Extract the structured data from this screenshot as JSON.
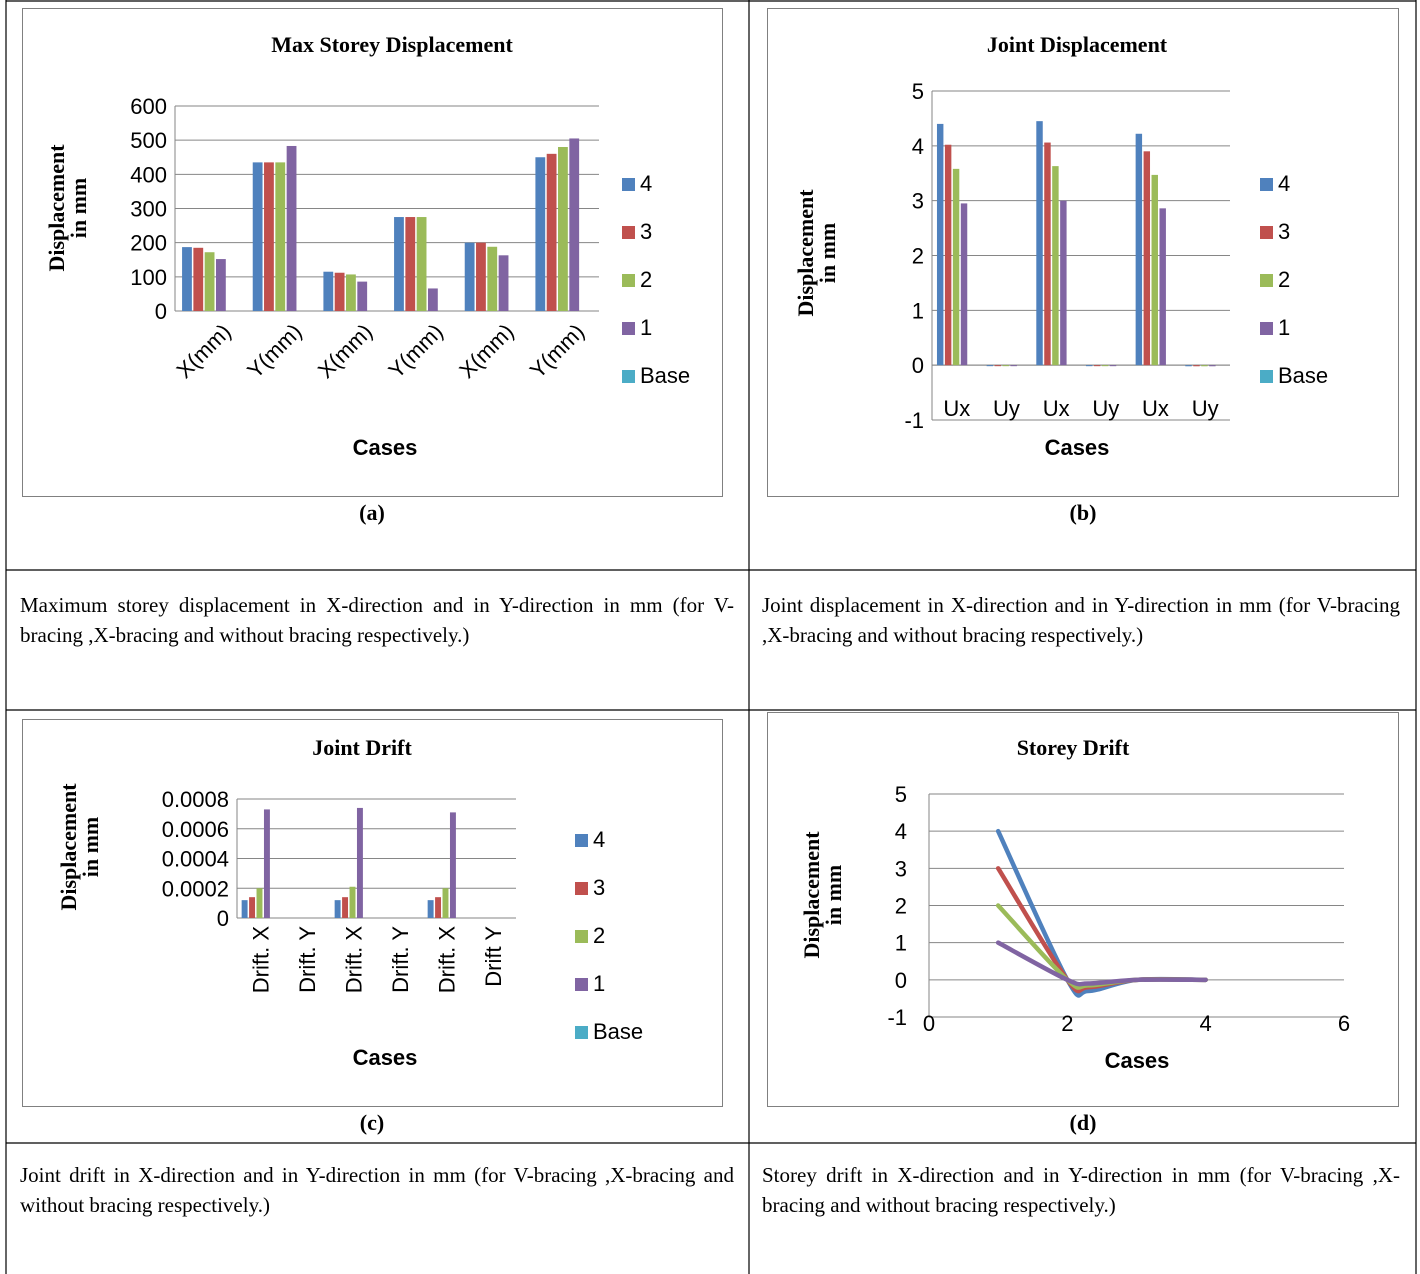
{
  "palette": {
    "4": "#4F81BD",
    "3": "#C0504D",
    "2": "#9BBB59",
    "1": "#8064A2",
    "Base": "#4BACC6"
  },
  "legend_entries": [
    "4",
    "3",
    "2",
    "1",
    "Base"
  ],
  "panels": {
    "a": {
      "label": "(a)",
      "description": "Maximum storey displacement in X-direction and in Y-direction in mm (for V-bracing ,X-bracing and without bracing respectively.)"
    },
    "b": {
      "label": "(b)",
      "description": "Joint displacement in X-direction and in Y-direction in mm (for V-bracing ,X-bracing and without bracing respectively.)"
    },
    "c": {
      "label": "(c)",
      "description": "Joint drift in X-direction and in Y-direction in mm (for V-bracing ,X-bracing and without bracing respectively.)"
    },
    "d": {
      "label": "(d)",
      "description": "Storey drift in X-direction and in Y-direction in mm (for V-bracing ,X-bracing and without bracing respectively.)"
    }
  },
  "chart_data": [
    {
      "id": "a",
      "type": "bar",
      "title": "Max Storey Displacement",
      "xlabel": "Cases",
      "ylabel": "Displacement in mm",
      "categories": [
        "X(mm)",
        "Y(mm)",
        "X(mm)",
        "Y(mm)",
        "X(mm)",
        "Y(mm)"
      ],
      "ylim": [
        0,
        600
      ],
      "yticks": [
        "0",
        "100",
        "200",
        "300",
        "400",
        "500",
        "600"
      ],
      "grid": true,
      "legend": "right",
      "series": [
        {
          "name": "4",
          "values": [
            187,
            435,
            115,
            275,
            200,
            450
          ]
        },
        {
          "name": "3",
          "values": [
            185,
            435,
            112,
            275,
            200,
            460
          ]
        },
        {
          "name": "2",
          "values": [
            172,
            435,
            107,
            275,
            188,
            480
          ]
        },
        {
          "name": "1",
          "values": [
            152,
            483,
            86,
            66,
            163,
            505
          ]
        },
        {
          "name": "Base",
          "values": [
            0,
            0,
            0,
            0,
            0,
            0
          ]
        }
      ]
    },
    {
      "id": "b",
      "type": "bar",
      "title": "Joint Displacement",
      "xlabel": "Cases",
      "ylabel": "Displacement in mm",
      "categories": [
        "Ux",
        "Uy",
        "Ux",
        "Uy",
        "Ux",
        "Uy"
      ],
      "ylim": [
        -1,
        5
      ],
      "yticks": [
        "-1",
        "0",
        "1",
        "2",
        "3",
        "4",
        "5"
      ],
      "grid": true,
      "legend": "right",
      "series": [
        {
          "name": "4",
          "values": [
            4.4,
            -0.01,
            4.45,
            -0.01,
            4.22,
            -0.02
          ]
        },
        {
          "name": "3",
          "values": [
            4.02,
            -0.01,
            4.06,
            -0.01,
            3.9,
            -0.02
          ]
        },
        {
          "name": "2",
          "values": [
            3.58,
            -0.01,
            3.63,
            -0.01,
            3.47,
            -0.02
          ]
        },
        {
          "name": "1",
          "values": [
            2.95,
            -0.01,
            3.0,
            -0.01,
            2.86,
            -0.02
          ]
        },
        {
          "name": "Base",
          "values": [
            0,
            0,
            0,
            0,
            0,
            0
          ]
        }
      ]
    },
    {
      "id": "c",
      "type": "bar",
      "title": "Joint Drift",
      "xlabel": "Cases",
      "ylabel": "Displacement in mm",
      "categories": [
        "Drift. X",
        "Drift. Y",
        "Drift. X",
        "Drift. Y",
        "Drift. X",
        "Drift Y"
      ],
      "ylim": [
        0,
        0.0008
      ],
      "yticks": [
        "0",
        "0.0002",
        "0.0004",
        "0.0006",
        "0.0008"
      ],
      "grid": true,
      "legend": "right",
      "series": [
        {
          "name": "4",
          "values": [
            0.00012,
            0,
            0.00012,
            0,
            0.00012,
            0
          ]
        },
        {
          "name": "3",
          "values": [
            0.00014,
            0,
            0.00014,
            0,
            0.00014,
            0
          ]
        },
        {
          "name": "2",
          "values": [
            0.0002,
            0,
            0.00021,
            0,
            0.0002,
            0
          ]
        },
        {
          "name": "1",
          "values": [
            0.00073,
            0,
            0.00074,
            0,
            0.00071,
            0
          ]
        },
        {
          "name": "Base",
          "values": [
            0,
            0,
            0,
            0,
            0,
            0
          ]
        }
      ]
    },
    {
      "id": "d",
      "type": "line",
      "title": "Storey Drift",
      "xlabel": "Cases",
      "ylabel": "Displacement in mm",
      "xlim": [
        0,
        6
      ],
      "xticks": [
        "0",
        "2",
        "4",
        "6"
      ],
      "ylim": [
        -1,
        5
      ],
      "yticks": [
        "-1",
        "0",
        "1",
        "2",
        "3",
        "4",
        "5"
      ],
      "grid": true,
      "series": [
        {
          "name": "4",
          "x": [
            1,
            2,
            2.3,
            3,
            4
          ],
          "y": [
            4,
            0,
            -0.3,
            0,
            0
          ]
        },
        {
          "name": "3",
          "x": [
            1,
            2,
            2.3,
            3,
            4
          ],
          "y": [
            3,
            0,
            -0.2,
            0,
            0
          ]
        },
        {
          "name": "2",
          "x": [
            1,
            2,
            2.3,
            3,
            4
          ],
          "y": [
            2,
            0,
            -0.15,
            0,
            0
          ]
        },
        {
          "name": "1",
          "x": [
            1,
            2,
            2.3,
            3,
            4
          ],
          "y": [
            1,
            0,
            -0.1,
            0,
            0
          ]
        }
      ]
    }
  ]
}
